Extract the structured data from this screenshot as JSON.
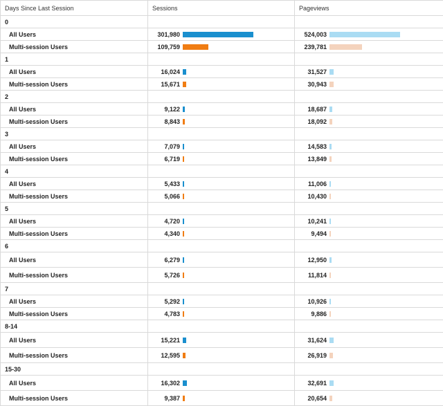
{
  "headers": {
    "dimension": "Days Since Last Session",
    "sessions": "Sessions",
    "pageviews": "Pageviews"
  },
  "colors": {
    "all_sessions": "#1a8fce",
    "multi_sessions": "#f07d13",
    "all_pageviews": "#aadcf3",
    "multi_pageviews": "#f4d3bd"
  },
  "scale": {
    "sessions_max": 301980,
    "pageviews_max": 524003
  },
  "groups": [
    {
      "label": "0",
      "rows": [
        {
          "segment": "All Users",
          "sessions": "301,980",
          "sessions_value": 301980,
          "pageviews": "524,003",
          "pageviews_value": 524003
        },
        {
          "segment": "Multi-session Users",
          "sessions": "109,759",
          "sessions_value": 109759,
          "pageviews": "239,781",
          "pageviews_value": 239781
        }
      ]
    },
    {
      "label": "1",
      "rows": [
        {
          "segment": "All Users",
          "sessions": "16,024",
          "sessions_value": 16024,
          "pageviews": "31,527",
          "pageviews_value": 31527
        },
        {
          "segment": "Multi-session Users",
          "sessions": "15,671",
          "sessions_value": 15671,
          "pageviews": "30,943",
          "pageviews_value": 30943
        }
      ]
    },
    {
      "label": "2",
      "rows": [
        {
          "segment": "All Users",
          "sessions": "9,122",
          "sessions_value": 9122,
          "pageviews": "18,687",
          "pageviews_value": 18687
        },
        {
          "segment": "Multi-session Users",
          "sessions": "8,843",
          "sessions_value": 8843,
          "pageviews": "18,092",
          "pageviews_value": 18092
        }
      ]
    },
    {
      "label": "3",
      "rows": [
        {
          "segment": "All Users",
          "sessions": "7,079",
          "sessions_value": 7079,
          "pageviews": "14,583",
          "pageviews_value": 14583
        },
        {
          "segment": "Multi-session Users",
          "sessions": "6,719",
          "sessions_value": 6719,
          "pageviews": "13,849",
          "pageviews_value": 13849
        }
      ]
    },
    {
      "label": "4",
      "rows": [
        {
          "segment": "All Users",
          "sessions": "5,433",
          "sessions_value": 5433,
          "pageviews": "11,006",
          "pageviews_value": 11006
        },
        {
          "segment": "Multi-session Users",
          "sessions": "5,066",
          "sessions_value": 5066,
          "pageviews": "10,430",
          "pageviews_value": 10430
        }
      ]
    },
    {
      "label": "5",
      "rows": [
        {
          "segment": "All Users",
          "sessions": "4,720",
          "sessions_value": 4720,
          "pageviews": "10,241",
          "pageviews_value": 10241
        },
        {
          "segment": "Multi-session Users",
          "sessions": "4,340",
          "sessions_value": 4340,
          "pageviews": "9,494",
          "pageviews_value": 9494
        }
      ]
    },
    {
      "label": "6",
      "rows": [
        {
          "segment": "All Users",
          "sessions": "6,279",
          "sessions_value": 6279,
          "pageviews": "12,950",
          "pageviews_value": 12950
        },
        {
          "segment": "Multi-session Users",
          "sessions": "5,726",
          "sessions_value": 5726,
          "pageviews": "11,814",
          "pageviews_value": 11814
        }
      ]
    },
    {
      "label": "7",
      "rows": [
        {
          "segment": "All Users",
          "sessions": "5,292",
          "sessions_value": 5292,
          "pageviews": "10,926",
          "pageviews_value": 10926
        },
        {
          "segment": "Multi-session Users",
          "sessions": "4,783",
          "sessions_value": 4783,
          "pageviews": "9,886",
          "pageviews_value": 9886
        }
      ]
    },
    {
      "label": "8-14",
      "rows": [
        {
          "segment": "All Users",
          "sessions": "15,221",
          "sessions_value": 15221,
          "pageviews": "31,624",
          "pageviews_value": 31624
        },
        {
          "segment": "Multi-session Users",
          "sessions": "12,595",
          "sessions_value": 12595,
          "pageviews": "26,919",
          "pageviews_value": 26919
        }
      ]
    },
    {
      "label": "15-30",
      "rows": [
        {
          "segment": "All Users",
          "sessions": "16,302",
          "sessions_value": 16302,
          "pageviews": "32,691",
          "pageviews_value": 32691
        },
        {
          "segment": "Multi-session Users",
          "sessions": "9,387",
          "sessions_value": 9387,
          "pageviews": "20,654",
          "pageviews_value": 20654
        }
      ]
    }
  ]
}
